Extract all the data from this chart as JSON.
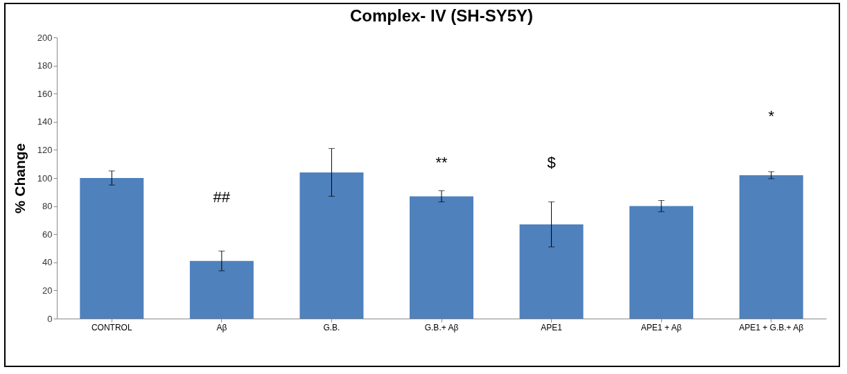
{
  "chart_data": {
    "type": "bar",
    "title": "Complex- IV (SH-SY5Y)",
    "ylabel": "% Change",
    "categories": [
      "CONTROL",
      "Aβ",
      "G.B.",
      "G.B.+ Aβ",
      "APE1",
      "APE1 + Aβ",
      "APE1 + G.B.+ Aβ"
    ],
    "values": [
      100,
      41,
      104,
      87,
      67,
      80,
      102
    ],
    "errors": [
      5,
      7,
      17,
      4,
      16,
      4,
      2.5
    ],
    "color": "#4f81bd",
    "ylim": [
      0,
      200
    ],
    "yticks": [
      0,
      20,
      40,
      60,
      80,
      100,
      120,
      140,
      160,
      180,
      200
    ],
    "grid": false,
    "annotations": [
      "##",
      "**",
      "$",
      "*"
    ]
  }
}
